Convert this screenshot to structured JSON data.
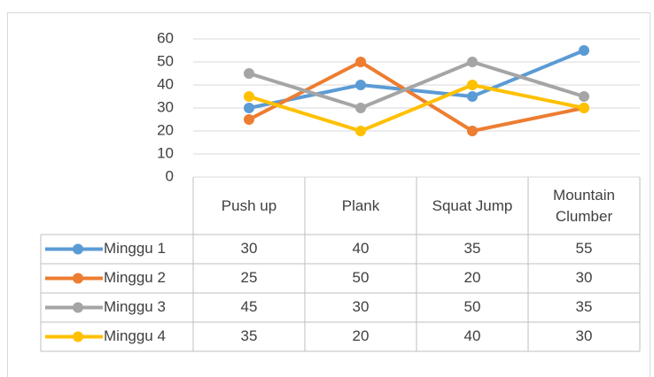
{
  "chart_data": {
    "type": "line",
    "categories": [
      "Push up",
      "Plank",
      "Squat Jump",
      "Mountain Clumber"
    ],
    "series": [
      {
        "name": "Minggu 1",
        "color": "#5b9bd5",
        "values": [
          30,
          40,
          35,
          55
        ]
      },
      {
        "name": "Minggu 2",
        "color": "#ed7d31",
        "values": [
          25,
          50,
          20,
          30
        ]
      },
      {
        "name": "Minggu 3",
        "color": "#a5a5a5",
        "values": [
          45,
          30,
          50,
          35
        ]
      },
      {
        "name": "Minggu 4",
        "color": "#ffc000",
        "values": [
          35,
          20,
          40,
          30
        ]
      }
    ],
    "ylim": [
      0,
      60
    ],
    "yticks": [
      0,
      10,
      20,
      30,
      40,
      50,
      60
    ],
    "grid": true,
    "data_table": true
  }
}
